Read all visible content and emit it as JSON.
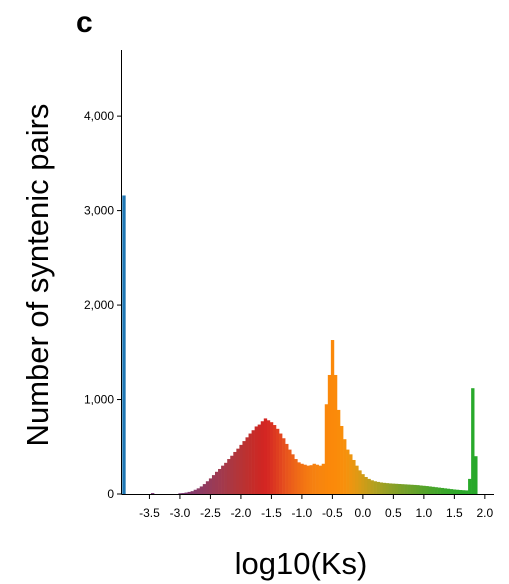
{
  "panel_label": "c",
  "chart_data": {
    "type": "bar",
    "xlabel": "log10(Ks)",
    "ylabel": "Number of syntenic pairs",
    "xlim": [
      -3.95,
      2.15
    ],
    "ylim": [
      0,
      4700
    ],
    "grid": false,
    "legend": "none",
    "x_ticks": [
      -3.5,
      -3.0,
      -2.5,
      -2.0,
      -1.5,
      -1.0,
      -0.5,
      0.0,
      0.5,
      1.0,
      1.5,
      2.0
    ],
    "x_tick_labels": [
      "-3.5",
      "-3.0",
      "-2.5",
      "-2.0",
      "-1.5",
      "-1.0",
      "-0.5",
      "0.0",
      "0.5",
      "1.0",
      "1.5",
      "2.0"
    ],
    "y_ticks": [
      0,
      1000,
      2000,
      3000,
      4000
    ],
    "y_tick_labels": [
      "0",
      "1,000",
      "2,000",
      "3,000",
      "4,000"
    ],
    "bin_width": 0.05,
    "bins": [
      {
        "x": -3.92,
        "y": 3160,
        "color": "#1f77b4"
      },
      {
        "x": -3.45,
        "y": 10,
        "color": "#7a3a78"
      },
      {
        "x": -3.0,
        "y": 8,
        "color": "#7a3a78"
      },
      {
        "x": -2.95,
        "y": 10,
        "color": "#7d3a74"
      },
      {
        "x": -2.9,
        "y": 15,
        "color": "#7f3a72"
      },
      {
        "x": -2.85,
        "y": 22,
        "color": "#823a70"
      },
      {
        "x": -2.8,
        "y": 30,
        "color": "#853a6c"
      },
      {
        "x": -2.75,
        "y": 45,
        "color": "#883b6a"
      },
      {
        "x": -2.7,
        "y": 60,
        "color": "#8b3b66"
      },
      {
        "x": -2.65,
        "y": 80,
        "color": "#8e3b63"
      },
      {
        "x": -2.6,
        "y": 105,
        "color": "#913b60"
      },
      {
        "x": -2.55,
        "y": 135,
        "color": "#943b5d"
      },
      {
        "x": -2.5,
        "y": 165,
        "color": "#973b5a"
      },
      {
        "x": -2.45,
        "y": 200,
        "color": "#9a3b56"
      },
      {
        "x": -2.4,
        "y": 235,
        "color": "#9d3a53"
      },
      {
        "x": -2.35,
        "y": 265,
        "color": "#a03a50"
      },
      {
        "x": -2.3,
        "y": 300,
        "color": "#a3394c"
      },
      {
        "x": -2.25,
        "y": 330,
        "color": "#a63948"
      },
      {
        "x": -2.2,
        "y": 370,
        "color": "#a93844"
      },
      {
        "x": -2.15,
        "y": 405,
        "color": "#ac3741"
      },
      {
        "x": -2.1,
        "y": 445,
        "color": "#b0363d"
      },
      {
        "x": -2.05,
        "y": 480,
        "color": "#b33539"
      },
      {
        "x": -2.0,
        "y": 520,
        "color": "#b73336"
      },
      {
        "x": -1.95,
        "y": 560,
        "color": "#ba3232"
      },
      {
        "x": -1.9,
        "y": 600,
        "color": "#be302f"
      },
      {
        "x": -1.85,
        "y": 640,
        "color": "#c12e2c"
      },
      {
        "x": -1.8,
        "y": 675,
        "color": "#c52c29"
      },
      {
        "x": -1.75,
        "y": 715,
        "color": "#c92a27"
      },
      {
        "x": -1.7,
        "y": 735,
        "color": "#cc2825"
      },
      {
        "x": -1.65,
        "y": 770,
        "color": "#d02623"
      },
      {
        "x": -1.6,
        "y": 800,
        "color": "#d42623"
      },
      {
        "x": -1.55,
        "y": 780,
        "color": "#d62a23"
      },
      {
        "x": -1.5,
        "y": 760,
        "color": "#d93122"
      },
      {
        "x": -1.45,
        "y": 730,
        "color": "#dc3821"
      },
      {
        "x": -1.4,
        "y": 690,
        "color": "#df3f20"
      },
      {
        "x": -1.35,
        "y": 640,
        "color": "#e2461f"
      },
      {
        "x": -1.3,
        "y": 590,
        "color": "#e54e1e"
      },
      {
        "x": -1.25,
        "y": 530,
        "color": "#e8551c"
      },
      {
        "x": -1.2,
        "y": 470,
        "color": "#ea5b1b"
      },
      {
        "x": -1.15,
        "y": 420,
        "color": "#ec6119"
      },
      {
        "x": -1.1,
        "y": 370,
        "color": "#ee6718"
      },
      {
        "x": -1.05,
        "y": 335,
        "color": "#f06c16"
      },
      {
        "x": -1.0,
        "y": 320,
        "color": "#f17114"
      },
      {
        "x": -0.95,
        "y": 310,
        "color": "#f37613"
      },
      {
        "x": -0.9,
        "y": 300,
        "color": "#f47a12"
      },
      {
        "x": -0.85,
        "y": 305,
        "color": "#f57e11"
      },
      {
        "x": -0.8,
        "y": 320,
        "color": "#f68110"
      },
      {
        "x": -0.75,
        "y": 310,
        "color": "#f7830f"
      },
      {
        "x": -0.7,
        "y": 300,
        "color": "#f8850e"
      },
      {
        "x": -0.65,
        "y": 320,
        "color": "#f8860d"
      },
      {
        "x": -0.6,
        "y": 950,
        "color": "#fa870b"
      },
      {
        "x": -0.55,
        "y": 1260,
        "color": "#fb880a"
      },
      {
        "x": -0.5,
        "y": 1630,
        "color": "#fb890a"
      },
      {
        "x": -0.45,
        "y": 1260,
        "color": "#fb8a0a"
      },
      {
        "x": -0.4,
        "y": 890,
        "color": "#fa8c0a"
      },
      {
        "x": -0.35,
        "y": 720,
        "color": "#f98e0b"
      },
      {
        "x": -0.3,
        "y": 580,
        "color": "#f7900c"
      },
      {
        "x": -0.25,
        "y": 470,
        "color": "#f3930e"
      },
      {
        "x": -0.2,
        "y": 420,
        "color": "#ee9510"
      },
      {
        "x": -0.15,
        "y": 360,
        "color": "#e89712"
      },
      {
        "x": -0.1,
        "y": 300,
        "color": "#e19914"
      },
      {
        "x": -0.05,
        "y": 250,
        "color": "#d99b16"
      },
      {
        "x": 0.0,
        "y": 210,
        "color": "#d19c18"
      },
      {
        "x": 0.05,
        "y": 180,
        "color": "#c99d1a"
      },
      {
        "x": 0.1,
        "y": 160,
        "color": "#c19e1c"
      },
      {
        "x": 0.15,
        "y": 145,
        "color": "#b99f1e"
      },
      {
        "x": 0.2,
        "y": 135,
        "color": "#b1a020"
      },
      {
        "x": 0.25,
        "y": 128,
        "color": "#aaa022"
      },
      {
        "x": 0.3,
        "y": 122,
        "color": "#a3a023"
      },
      {
        "x": 0.35,
        "y": 118,
        "color": "#9ca024"
      },
      {
        "x": 0.4,
        "y": 115,
        "color": "#96a025"
      },
      {
        "x": 0.45,
        "y": 112,
        "color": "#90a026"
      },
      {
        "x": 0.5,
        "y": 110,
        "color": "#8aa027"
      },
      {
        "x": 0.55,
        "y": 108,
        "color": "#84a027"
      },
      {
        "x": 0.6,
        "y": 106,
        "color": "#7ea028"
      },
      {
        "x": 0.65,
        "y": 104,
        "color": "#79a028"
      },
      {
        "x": 0.7,
        "y": 102,
        "color": "#74a029"
      },
      {
        "x": 0.75,
        "y": 100,
        "color": "#6fa129"
      },
      {
        "x": 0.8,
        "y": 98,
        "color": "#6aa129"
      },
      {
        "x": 0.85,
        "y": 96,
        "color": "#65a22a"
      },
      {
        "x": 0.9,
        "y": 94,
        "color": "#60a22a"
      },
      {
        "x": 0.95,
        "y": 90,
        "color": "#5ba32a"
      },
      {
        "x": 1.0,
        "y": 87,
        "color": "#56a32a"
      },
      {
        "x": 1.05,
        "y": 84,
        "color": "#51a42a"
      },
      {
        "x": 1.1,
        "y": 80,
        "color": "#4ca42a"
      },
      {
        "x": 1.15,
        "y": 76,
        "color": "#48a52a"
      },
      {
        "x": 1.2,
        "y": 72,
        "color": "#44a52a"
      },
      {
        "x": 1.25,
        "y": 68,
        "color": "#40a62a"
      },
      {
        "x": 1.3,
        "y": 64,
        "color": "#3ca62a"
      },
      {
        "x": 1.35,
        "y": 60,
        "color": "#39a72a"
      },
      {
        "x": 1.4,
        "y": 56,
        "color": "#36a72a"
      },
      {
        "x": 1.45,
        "y": 52,
        "color": "#33a82a"
      },
      {
        "x": 1.5,
        "y": 48,
        "color": "#31a82a"
      },
      {
        "x": 1.55,
        "y": 45,
        "color": "#2fa92a"
      },
      {
        "x": 1.6,
        "y": 42,
        "color": "#2da92a"
      },
      {
        "x": 1.65,
        "y": 40,
        "color": "#2ba92a"
      },
      {
        "x": 1.7,
        "y": 38,
        "color": "#2aaa2a"
      },
      {
        "x": 1.75,
        "y": 160,
        "color": "#29aa2a"
      },
      {
        "x": 1.8,
        "y": 1120,
        "color": "#28a92a"
      },
      {
        "x": 1.85,
        "y": 400,
        "color": "#27a82a"
      }
    ]
  }
}
